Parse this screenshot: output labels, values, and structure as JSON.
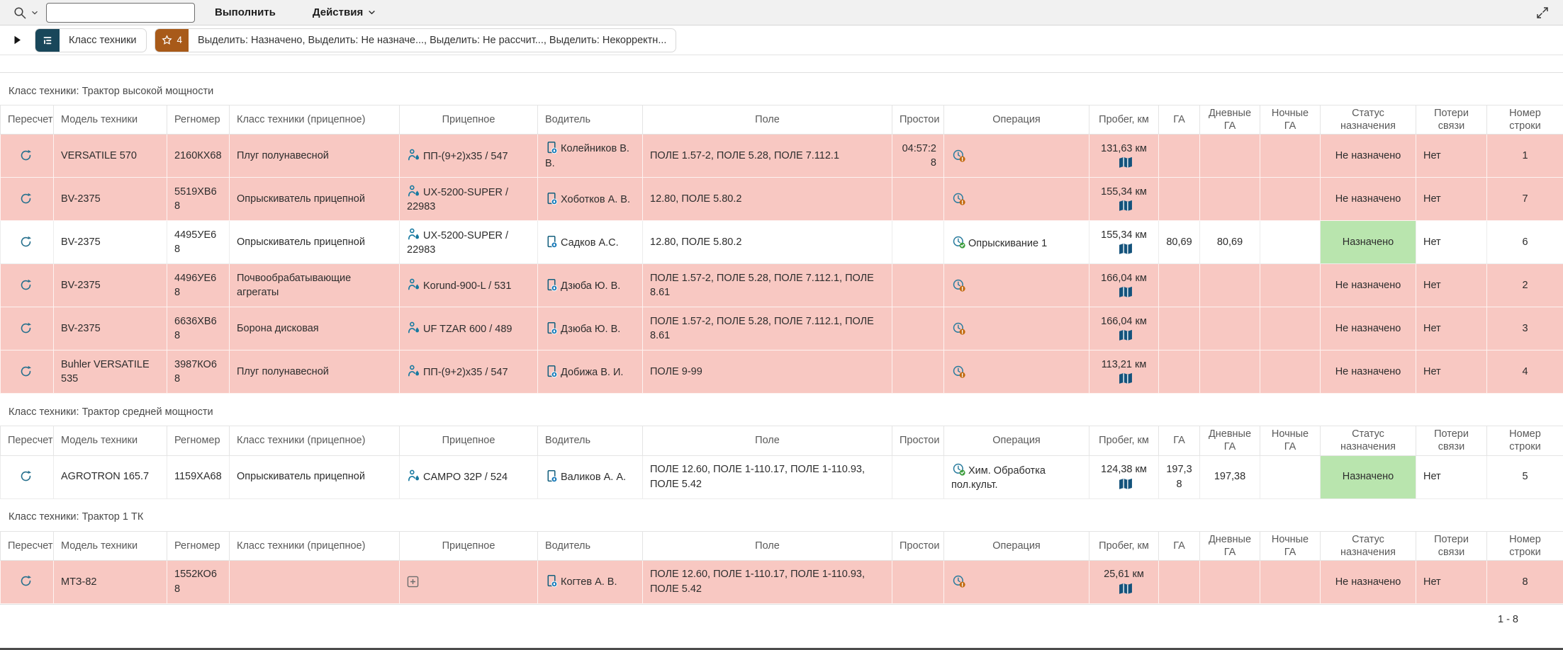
{
  "toolbar": {
    "search_value": "",
    "execute_label": "Выполнить",
    "actions_label": "Действия"
  },
  "report_bar": {
    "control_break_label": "Класс техники",
    "badge_count": "4",
    "highlights_text": "Выделить: Назначено, Выделить: Не назначе..., Выделить: Не рассчит..., Выделить: Некорректн..."
  },
  "columns": [
    "Пересчет",
    "Модель техники",
    "Регномер",
    "Класс техники (прицепное)",
    "Прицепное",
    "Водитель",
    "Поле",
    "Простои",
    "Операция",
    "Пробег, км",
    "ГА",
    "Дневные ГА",
    "Ночные ГА",
    "Статус назначения",
    "Потери связи",
    "Номер строки"
  ],
  "groups": [
    {
      "title": "Класс техники: Трактор высокой мощности",
      "rows": [
        {
          "model": "VERSATILE 570",
          "reg": "2160КХ68",
          "trailer_class": "Плуг полунавесной",
          "trailer": "ПП-(9+2)x35 / 547",
          "trailer_icon": "implement",
          "driver": "Колейников В. В.",
          "field": "ПОЛЕ 1.57-2, ПОЛЕ 5.28, ПОЛЕ 7.112.1",
          "idle": "04:57:28",
          "operation": "",
          "operation_state": "pending",
          "mileage": "131,63 км",
          "ga": "",
          "day_ga": "",
          "night_ga": "",
          "status": "Не назначено",
          "assigned": false,
          "connection_loss": "Нет",
          "row_number": "1"
        },
        {
          "model": "BV-2375",
          "reg": "5519ХВ68",
          "trailer_class": "Опрыскиватель прицепной",
          "trailer": "UX-5200-SUPER / 22983",
          "trailer_icon": "implement",
          "driver": "Хоботков А. В.",
          "field": "12.80, ПОЛЕ 5.80.2",
          "idle": "",
          "operation": "",
          "operation_state": "pending",
          "mileage": "155,34 км",
          "ga": "",
          "day_ga": "",
          "night_ga": "",
          "status": "Не назначено",
          "assigned": false,
          "connection_loss": "Нет",
          "row_number": "7"
        },
        {
          "model": "BV-2375",
          "reg": "4495УЕ68",
          "trailer_class": "Опрыскиватель прицепной",
          "trailer": "UX-5200-SUPER / 22983",
          "trailer_icon": "implement",
          "driver": "Садков А.С.",
          "field": "12.80, ПОЛЕ 5.80.2",
          "idle": "",
          "operation": "Опрыскивание 1",
          "operation_state": "done",
          "mileage": "155,34 км",
          "ga": "80,69",
          "day_ga": "80,69",
          "night_ga": "",
          "status": "Назначено",
          "assigned": true,
          "connection_loss": "Нет",
          "row_number": "6"
        },
        {
          "model": "BV-2375",
          "reg": "4496УЕ68",
          "trailer_class": "Почвообрабатывающие агрегаты",
          "trailer": "Korund-900-L / 531",
          "trailer_icon": "implement",
          "driver": "Дзюба Ю. В.",
          "field": "ПОЛЕ 1.57-2, ПОЛЕ 5.28, ПОЛЕ 7.112.1, ПОЛЕ 8.61",
          "idle": "",
          "operation": "",
          "operation_state": "pending",
          "mileage": "166,04 км",
          "ga": "",
          "day_ga": "",
          "night_ga": "",
          "status": "Не назначено",
          "assigned": false,
          "connection_loss": "Нет",
          "row_number": "2"
        },
        {
          "model": "BV-2375",
          "reg": "6636ХВ68",
          "trailer_class": "Борона дисковая",
          "trailer": "UF TZAR 600 / 489",
          "trailer_icon": "implement",
          "driver": "Дзюба Ю. В.",
          "field": "ПОЛЕ 1.57-2, ПОЛЕ 5.28, ПОЛЕ 7.112.1, ПОЛЕ 8.61",
          "idle": "",
          "operation": "",
          "operation_state": "pending",
          "mileage": "166,04 км",
          "ga": "",
          "day_ga": "",
          "night_ga": "",
          "status": "Не назначено",
          "assigned": false,
          "connection_loss": "Нет",
          "row_number": "3"
        },
        {
          "model": "Buhler VERSATILE 535",
          "reg": "3987КО68",
          "trailer_class": "Плуг полунавесной",
          "trailer": "ПП-(9+2)x35 / 547",
          "trailer_icon": "implement",
          "driver": "Добижа В. И.",
          "field": "ПОЛЕ 9-99",
          "idle": "",
          "operation": "",
          "operation_state": "pending",
          "mileage": "113,21 км",
          "ga": "",
          "day_ga": "",
          "night_ga": "",
          "status": "Не назначено",
          "assigned": false,
          "connection_loss": "Нет",
          "row_number": "4"
        }
      ]
    },
    {
      "title": "Класс техники: Трактор средней мощности",
      "rows": [
        {
          "model": "AGROTRON 165.7",
          "reg": "1159ХА68",
          "trailer_class": "Опрыскиватель прицепной",
          "trailer": "CAMPO 32P / 524",
          "trailer_icon": "implement",
          "driver": "Валиков А. А.",
          "field": "ПОЛЕ 12.60, ПОЛЕ 1-110.17, ПОЛЕ 1-110.93, ПОЛЕ 5.42",
          "idle": "",
          "operation": "Хим. Обработка пол.культ.",
          "operation_state": "done",
          "mileage": "124,38 км",
          "ga": "197,38",
          "day_ga": "197,38",
          "night_ga": "",
          "status": "Назначено",
          "assigned": true,
          "connection_loss": "Нет",
          "row_number": "5"
        }
      ]
    },
    {
      "title": "Класс техники: Трактор 1 ТК",
      "rows": [
        {
          "model": "МТЗ-82",
          "reg": "1552КО68",
          "trailer_class": "",
          "trailer": "",
          "trailer_icon": "add",
          "driver": "Когтев А. В.",
          "field": "ПОЛЕ 12.60, ПОЛЕ 1-110.17, ПОЛЕ 1-110.93, ПОЛЕ 5.42",
          "idle": "",
          "operation": "",
          "operation_state": "pending",
          "mileage": "25,61 км",
          "ga": "",
          "day_ga": "",
          "night_ga": "",
          "status": "Не назначено",
          "assigned": false,
          "connection_loss": "Нет",
          "row_number": "8"
        }
      ]
    }
  ],
  "footer": {
    "pagination": "1 - 8"
  },
  "colors": {
    "unassigned_row_bg": "#f8c8c2",
    "assigned_status_bg": "#b9e5ae",
    "control_break_chip": "#19475a",
    "highlight_badge": "#a85a19",
    "icon_teal": "#26708d",
    "map_blue": "#14537c"
  }
}
